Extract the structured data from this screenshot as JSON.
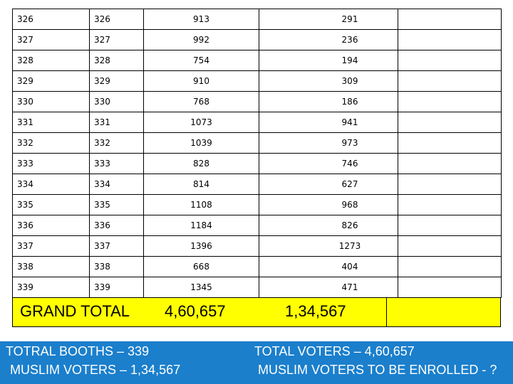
{
  "table": {
    "rows": [
      [
        "326",
        "326",
        "913",
        "291"
      ],
      [
        "327",
        "327",
        "992",
        "236"
      ],
      [
        "328",
        "328",
        "754",
        "194"
      ],
      [
        "329",
        "329",
        "910",
        "309"
      ],
      [
        "330",
        "330",
        "768",
        "186"
      ],
      [
        "331",
        "331",
        "1073",
        "941"
      ],
      [
        "332",
        "332",
        "1039",
        "973"
      ],
      [
        "333",
        "333",
        "828",
        "746"
      ],
      [
        "334",
        "334",
        "814",
        "627"
      ],
      [
        "335",
        "335",
        "1108",
        "968"
      ],
      [
        "336",
        "336",
        "1184",
        "826"
      ],
      [
        "337",
        "337",
        "1396",
        "1273"
      ],
      [
        "338",
        "338",
        "668",
        "404"
      ],
      [
        "339",
        "339",
        "1345",
        "471"
      ]
    ]
  },
  "totals": {
    "label": "GRAND TOTAL",
    "total_voters": "4,60,657",
    "muslim_voters": "1,34,567"
  },
  "footer": {
    "booths": "TOTRAL BOOTHS – 339",
    "muslim_voters": "MUSLIM VOTERS – 1,34,567",
    "total_voters": "TOTAL VOTERS – 4,60,657",
    "to_be_enrolled": "MUSLIM VOTERS TO BE ENROLLED - ?"
  },
  "colors": {
    "total_row_bg": "#ffff00",
    "footer_bg": "#1b7fcc"
  }
}
